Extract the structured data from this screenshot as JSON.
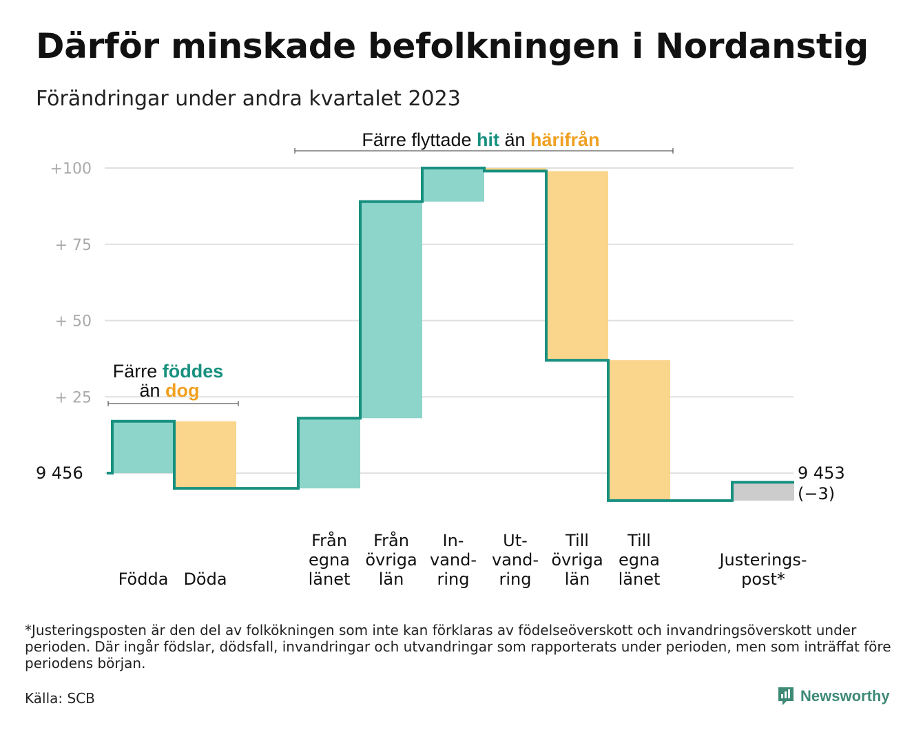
{
  "title": "Därför minskade befolkningen i Nordanstig",
  "subtitle": "Förändringar under andra kvartalet 2023",
  "footnote": "*Justeringsposten är den del av folkökningen som inte kan förklaras av födelseöverskott och invandringsöverskott under perioden. Där ingår födslar, dödsfall, invandringar och utvandringar som rapporterats under perioden, men som inträffat före periodens början.",
  "source": "Källa: SCB",
  "brand": "Newsworthy",
  "colors": {
    "increase": "#8dd5cb",
    "decrease": "#fad58c",
    "adjustment": "#cccccc",
    "line": "#17907f",
    "teal_text": "#17907f",
    "orange_text": "#f0a020",
    "grid": "#e0e0e0",
    "tick": "#aaaaaa"
  },
  "chart_data": {
    "type": "waterfall",
    "start_label": "9  456",
    "end_label": [
      "9 453",
      "(−3)"
    ],
    "baseline": 9456,
    "ylim": [
      -15,
      100
    ],
    "yticks": [
      {
        "value": 100,
        "label": "+100"
      },
      {
        "value": 75,
        "label": "+  75"
      },
      {
        "value": 50,
        "label": "+  50"
      },
      {
        "value": 25,
        "label": "+  25"
      }
    ],
    "steps": [
      {
        "label": [
          "Födda"
        ],
        "change": 17,
        "kind": "increase"
      },
      {
        "label": [
          "Döda"
        ],
        "change": -22,
        "kind": "decrease"
      },
      {
        "label": [],
        "change": 0,
        "kind": "gap"
      },
      {
        "label": [
          "Från",
          "egna",
          "länet"
        ],
        "change": 23,
        "kind": "increase"
      },
      {
        "label": [
          "Från",
          "övriga",
          "län"
        ],
        "change": 71,
        "kind": "increase"
      },
      {
        "label": [
          "In-",
          "vand-",
          "ring"
        ],
        "change": 11,
        "kind": "increase"
      },
      {
        "label": [
          "Ut-",
          "vand-",
          "ring"
        ],
        "change": -1,
        "kind": "decrease"
      },
      {
        "label": [
          "Till",
          "övriga",
          "län"
        ],
        "change": -62,
        "kind": "decrease"
      },
      {
        "label": [
          "Till",
          "egna",
          "länet"
        ],
        "change": -46,
        "kind": "decrease"
      },
      {
        "label": [],
        "change": 0,
        "kind": "gap"
      },
      {
        "label": [
          "Justerings-",
          "post*"
        ],
        "change": 6,
        "kind": "adjustment"
      }
    ],
    "annotations": [
      {
        "parts": [
          {
            "text": "Färre ",
            "style": "plain"
          },
          {
            "text": "föddes",
            "style": "teal"
          }
        ],
        "parts2": [
          {
            "text": "än ",
            "style": "plain"
          },
          {
            "text": "dog",
            "style": "orange"
          }
        ]
      },
      {
        "parts": [
          {
            "text": "Färre flyttade ",
            "style": "plain"
          },
          {
            "text": "hit",
            "style": "teal"
          },
          {
            "text": " än ",
            "style": "plain"
          },
          {
            "text": "härifrån",
            "style": "orange"
          }
        ]
      }
    ]
  }
}
